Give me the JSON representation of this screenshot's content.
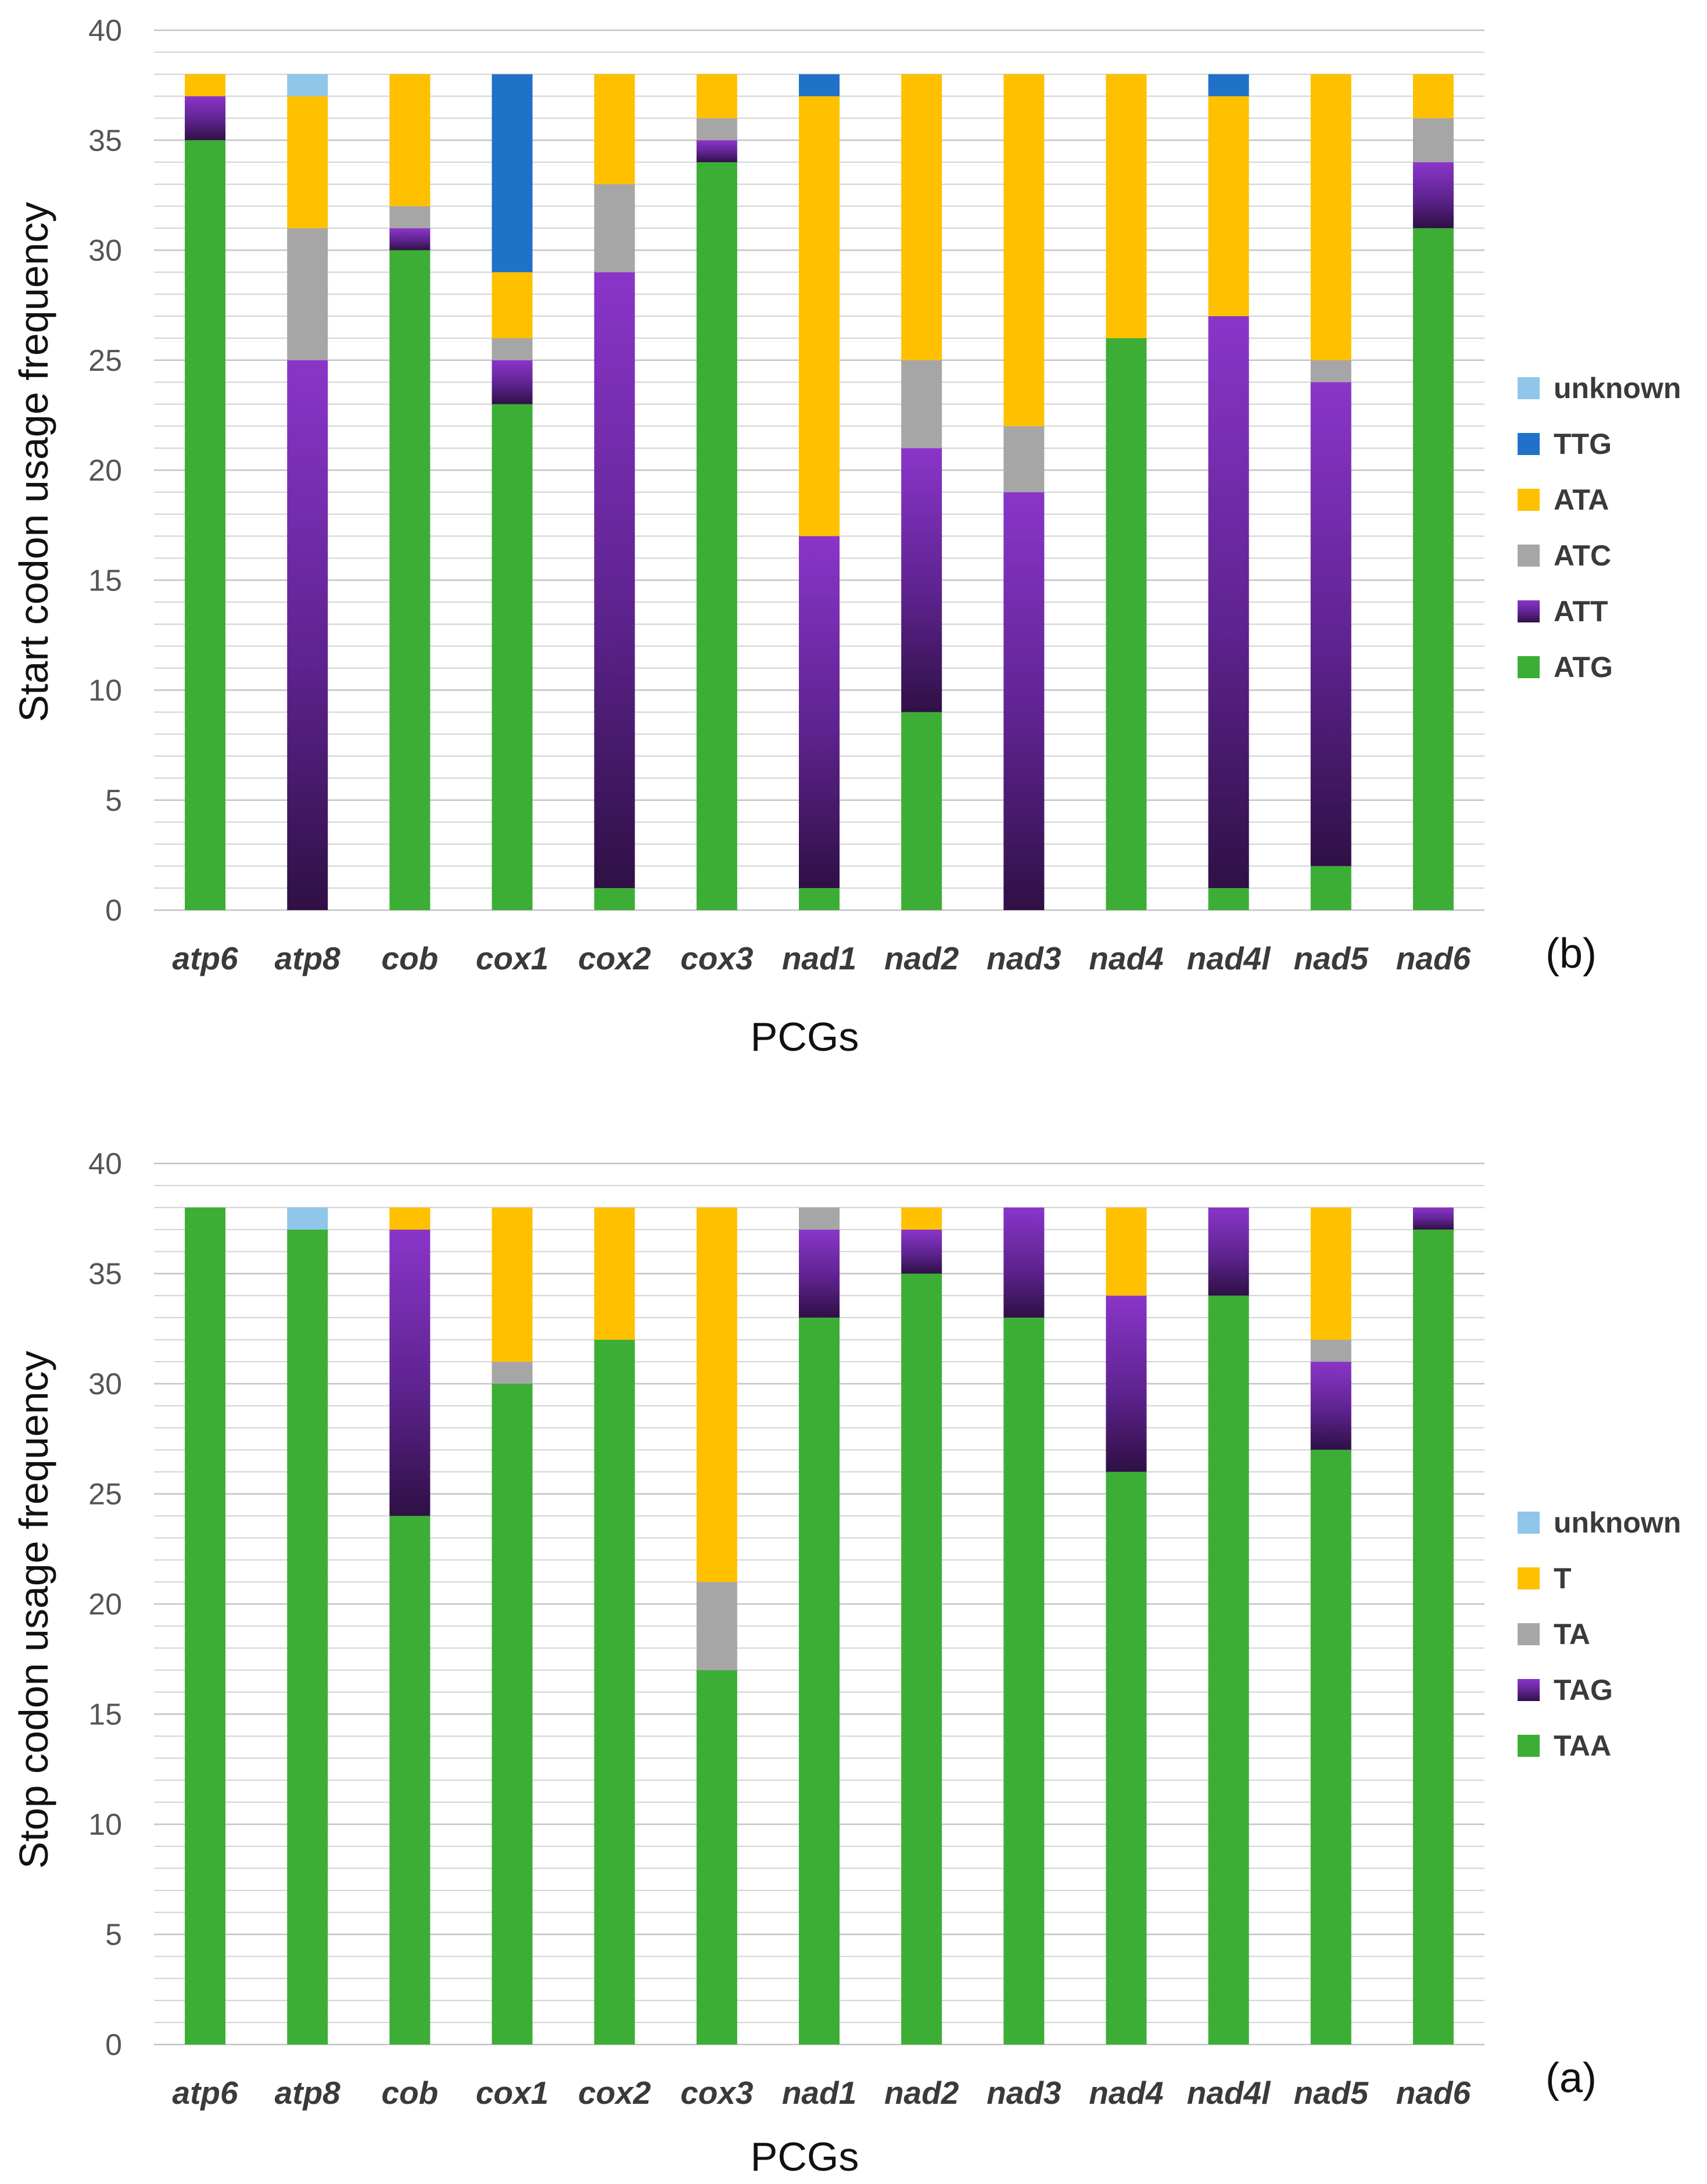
{
  "chart_data": [
    {
      "type": "bar",
      "stacked": true,
      "panel_label": "(b)",
      "xlabel": "PCGs",
      "ylabel": "Start codon usage frequency",
      "ylim": [
        0,
        40
      ],
      "yticks": [
        0,
        5,
        10,
        15,
        20,
        25,
        30,
        35,
        40
      ],
      "minor_grid_step": 1,
      "categories": [
        "atp6",
        "atp8",
        "cob",
        "cox1",
        "cox2",
        "cox3",
        "nad1",
        "nad2",
        "nad3",
        "nad4",
        "nad4l",
        "nad5",
        "nad6"
      ],
      "series": [
        {
          "name": "ATG",
          "color": "#3cae36",
          "values": [
            35,
            0,
            30,
            23,
            1,
            34,
            1,
            9,
            0,
            26,
            1,
            2,
            31
          ]
        },
        {
          "name": "ATT",
          "color": "#7a2fb5",
          "values": [
            2,
            25,
            1,
            2,
            28,
            1,
            16,
            12,
            19,
            0,
            26,
            22,
            3
          ]
        },
        {
          "name": "ATC",
          "color": "#a6a6a6",
          "values": [
            0,
            6,
            1,
            1,
            4,
            1,
            0,
            4,
            3,
            0,
            0,
            1,
            2
          ]
        },
        {
          "name": "ATA",
          "color": "#ffc000",
          "values": [
            1,
            6,
            6,
            3,
            5,
            2,
            20,
            13,
            16,
            12,
            10,
            13,
            2
          ]
        },
        {
          "name": "TTG",
          "color": "#1f72c8",
          "values": [
            0,
            0,
            0,
            9,
            0,
            0,
            1,
            0,
            0,
            0,
            1,
            0,
            0
          ]
        },
        {
          "name": "unknown",
          "color": "#8fc6ea",
          "values": [
            0,
            1,
            0,
            0,
            0,
            0,
            0,
            0,
            0,
            0,
            0,
            0,
            0
          ]
        }
      ],
      "legend": [
        "unknown",
        "TTG",
        "ATA",
        "ATC",
        "ATT",
        "ATG"
      ]
    },
    {
      "type": "bar",
      "stacked": true,
      "panel_label": "(a)",
      "xlabel": "PCGs",
      "ylabel": "Stop codon usage frequency",
      "ylim": [
        0,
        40
      ],
      "yticks": [
        0,
        5,
        10,
        15,
        20,
        25,
        30,
        35,
        40
      ],
      "minor_grid_step": 1,
      "categories": [
        "atp6",
        "atp8",
        "cob",
        "cox1",
        "cox2",
        "cox3",
        "nad1",
        "nad2",
        "nad3",
        "nad4",
        "nad4l",
        "nad5",
        "nad6"
      ],
      "series": [
        {
          "name": "TAA",
          "color": "#3cae36",
          "values": [
            38,
            37,
            24,
            30,
            32,
            17,
            33,
            35,
            33,
            26,
            34,
            27,
            37
          ]
        },
        {
          "name": "TAG",
          "color": "#7a2fb5",
          "values": [
            0,
            0,
            13,
            0,
            0,
            0,
            4,
            2,
            5,
            8,
            4,
            4,
            1
          ]
        },
        {
          "name": "TA",
          "color": "#a6a6a6",
          "values": [
            0,
            0,
            0,
            1,
            0,
            4,
            1,
            0,
            0,
            0,
            0,
            1,
            0
          ]
        },
        {
          "name": "T",
          "color": "#ffc000",
          "values": [
            0,
            0,
            1,
            7,
            6,
            17,
            0,
            1,
            0,
            4,
            0,
            6,
            0
          ]
        },
        {
          "name": "unknown",
          "color": "#8fc6ea",
          "values": [
            0,
            1,
            0,
            0,
            0,
            0,
            0,
            0,
            0,
            0,
            0,
            0,
            0
          ]
        }
      ],
      "legend": [
        "unknown",
        "T",
        "TA",
        "TAG",
        "TAA"
      ]
    }
  ]
}
